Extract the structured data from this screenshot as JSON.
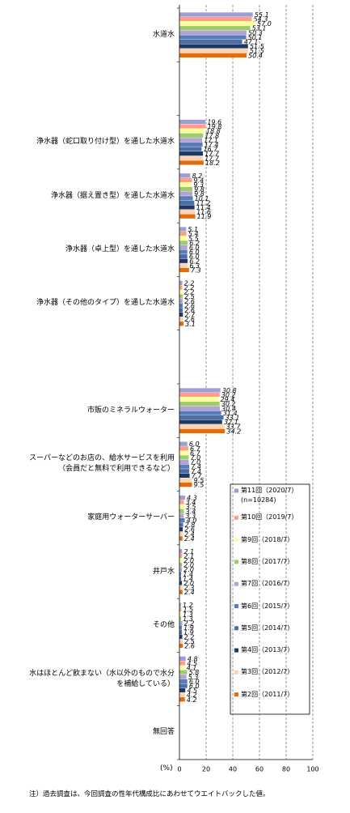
{
  "chart_data": {
    "type": "hbar",
    "categories": [
      "水道水",
      null,
      "浄水器（蛇口取り付け型）を通した水道水",
      "浄水器（据え置き型）を通した水道水",
      "浄水器（卓上型）を通した水道水",
      "浄水器（その他のタイプ）を通した水道水",
      null,
      "市販のミネラルウォーター",
      "スーパーなどのお店の、給水サービスを利用\n（会員だと無料で利用できるなど）",
      "家庭用ウォーターサーバー",
      "井戸水",
      "その他",
      "水はほとんど飲まない（水以外のもので水分\nを補給している）",
      "無回答"
    ],
    "series": [
      {
        "name": "第11回（2020/7）\n(n=10284)",
        "color": "#9d9dd8",
        "values": [
          55.1,
          null,
          19.6,
          8.2,
          5.1,
          2.2,
          null,
          30.8,
          6.0,
          4.3,
          2.1,
          1.2,
          4.8,
          null
        ],
        "value_labels": [
          "55.1",
          null,
          "19.6",
          "8.2",
          "5.1",
          "2.2",
          null,
          "30.8",
          "6.0",
          "4.3",
          "2.1",
          "1.2",
          "4.8",
          null
        ]
      },
      {
        "name": "第10回（2019/7）",
        "color": "#ff9d85",
        "values": [
          54.3,
          null,
          19.8,
          9.4,
          5.4,
          2.2,
          null,
          30.2,
          6.7,
          3.4,
          2.1,
          1.5,
          4.5,
          null
        ],
        "value_labels": [
          "54.3",
          null,
          "19.8",
          "9.4",
          "5.4",
          "2.2",
          null,
          "30.2",
          "6.7",
          "3.4",
          "2.1",
          "1.5",
          "4.5",
          null
        ]
      },
      {
        "name": "第9回（2018/7）",
        "color": "#ffff99",
        "values": [
          57.0,
          null,
          18.8,
          9.3,
          5.5,
          2.2,
          null,
          29.4,
          6.7,
          3.5,
          2.0,
          1.3,
          4.1,
          null
        ],
        "value_labels": [
          "57.0",
          null,
          "18.8",
          "9.3",
          "5.5",
          "2.2",
          null,
          "29.4",
          "6.7",
          "3.5",
          "2.0",
          "1.3",
          "4.1",
          null
        ]
      },
      {
        "name": "第8回（2017/7）",
        "color": "#9ccc6b",
        "values": [
          53.1,
          null,
          17.8,
          9.8,
          6.2,
          2.5,
          null,
          30.2,
          7.0,
          3.4,
          2.0,
          1.3,
          5.8,
          null
        ],
        "value_labels": [
          "53.1",
          null,
          "17.8",
          "9.8",
          "6.2",
          "2.5",
          null,
          "30.2",
          "7.0",
          "3.4",
          "2.0",
          "1.3",
          "5.8",
          null
        ]
      },
      {
        "name": "第7回（2016/7）",
        "color": "#b3a2d3",
        "values": [
          50.3,
          null,
          17.1,
          9.8,
          6.0,
          2.6,
          null,
          30.4,
          7.0,
          3.3,
          2.0,
          2.2,
          5.3,
          null
        ],
        "value_labels": [
          "50.3",
          null,
          "17.1",
          "9.8",
          "6.0",
          "2.6",
          null,
          "30.4",
          "7.0",
          "3.3",
          "2.0",
          "2.2",
          "5.3",
          null
        ]
      },
      {
        "name": "第6回（2015/7）",
        "color": "#5b7cb8",
        "values": [
          50.1,
          null,
          17.4,
          10.1,
          6.0,
          2.6,
          null,
          31.4,
          7.4,
          4.0,
          1.4,
          1.9,
          6.0,
          null
        ],
        "value_labels": [
          "50.1",
          null,
          "17.4",
          "10.1",
          "6.0",
          "2.6",
          null,
          "31.4",
          "7.4",
          "4.0",
          "1.4",
          "1.9",
          "6.0",
          null
        ]
      },
      {
        "name": "第5回（2014/7）",
        "color": "#4a6ea8",
        "values": [
          47.1,
          null,
          16.7,
          11.2,
          6.0,
          2.6,
          null,
          33.1,
          7.4,
          2.8,
          1.4,
          1.9,
          6.0,
          null
        ],
        "value_labels": [
          "47.1",
          null,
          "16.7",
          "11.2",
          "6.0",
          "2.6",
          null,
          "33.1",
          "7.4",
          "2.8",
          "1.4",
          "1.9",
          "6.0",
          null
        ]
      },
      {
        "name": "第4回（2013/7）",
        "color": "#1f3864",
        "values": [
          51.5,
          null,
          17.7,
          11.4,
          6.2,
          2.7,
          null,
          32.1,
          7.7,
          2.6,
          2.0,
          2.2,
          4.5,
          null
        ],
        "value_labels": [
          "51.5",
          null,
          "17.7",
          "11.4",
          "6.2",
          "2.7",
          null,
          "32.1",
          "7.7",
          "2.6",
          "2.0",
          "2.2",
          "4.5",
          null
        ]
      },
      {
        "name": "第3回（2012/7）",
        "color": "#fcd5b4",
        "values": [
          51.5,
          null,
          17.7,
          11.6,
          6.3,
          2.6,
          null,
          33.7,
          9.5,
          2.4,
          2.3,
          2.5,
          4.2,
          null
        ],
        "value_labels": [
          "51.5",
          null,
          "17.7",
          "11.6",
          "6.3",
          "2.6",
          null,
          "33.7",
          "9.5",
          "2.4",
          "2.3",
          "2.5",
          "4.2",
          null
        ]
      },
      {
        "name": "第2回（2011/7）",
        "color": "#e46c0a",
        "values": [
          50.4,
          null,
          18.2,
          11.9,
          7.3,
          3.1,
          null,
          34.2,
          9.5,
          2.4,
          2.4,
          2.6,
          4.2,
          null
        ],
        "value_labels": [
          "50.4",
          null,
          "18.2",
          "11.9",
          "7.3",
          "3.1",
          null,
          "34.2",
          "9.5",
          "2.4",
          "2.4",
          "2.6",
          "4.2",
          null
        ]
      }
    ],
    "x_label": "(%)",
    "xlim": [
      0,
      100
    ],
    "xticks": [
      0,
      20,
      40,
      60,
      80,
      100
    ],
    "grid": true,
    "note": "注）過去調査は、今回調査の性年代構成比にあわせてウエイトバックした値。"
  }
}
